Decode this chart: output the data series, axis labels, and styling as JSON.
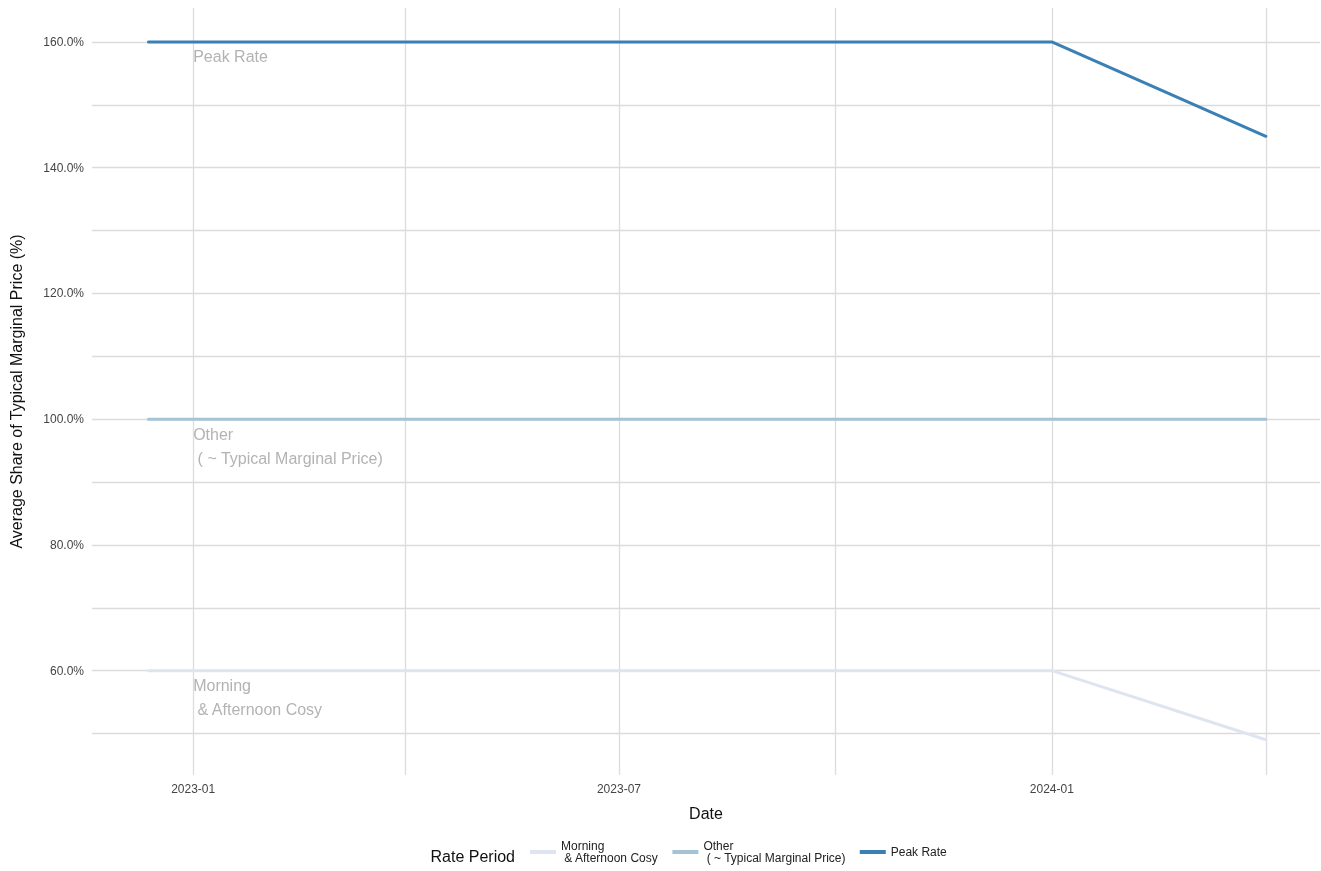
{
  "chart_data": {
    "type": "line",
    "xlabel": "Date",
    "ylabel": "Average Share of Typical Marginal Price (%)",
    "legend_title": "Rate Period",
    "x": [
      "2022-12-13",
      "2024-01-01",
      "2024-04-01"
    ],
    "series": [
      {
        "name": "Morning\n & Afternoon Cosy",
        "color": "#dde6f0",
        "values": [
          60,
          60,
          49
        ]
      },
      {
        "name": "Other\n ( ~ Typical Marginal Price)",
        "color": "#a6c3d6",
        "values": [
          100,
          100,
          100
        ]
      },
      {
        "name": "Peak Rate",
        "color": "#3a80b5",
        "values": [
          160,
          160,
          145
        ]
      }
    ],
    "xlim": [
      "2022-11-19",
      "2024-04-24"
    ],
    "xticks": [
      {
        "value": "2023-01",
        "label": "2023-01"
      },
      {
        "value": "2023-04",
        "label": null
      },
      {
        "value": "2023-07",
        "label": "2023-07"
      },
      {
        "value": "2023-10",
        "label": null
      },
      {
        "value": "2024-01",
        "label": "2024-01"
      },
      {
        "value": "2024-04",
        "label": null
      }
    ],
    "ylim": [
      43.4,
      165.4
    ],
    "yticks": [
      {
        "value": 50,
        "label": null
      },
      {
        "value": 60,
        "label": "60.0%"
      },
      {
        "value": 70,
        "label": null
      },
      {
        "value": 80,
        "label": "80.0%"
      },
      {
        "value": 90,
        "label": null
      },
      {
        "value": 100,
        "label": "100.0%"
      },
      {
        "value": 110,
        "label": null
      },
      {
        "value": 120,
        "label": "120.0%"
      },
      {
        "value": 130,
        "label": null
      },
      {
        "value": 140,
        "label": "140.0%"
      },
      {
        "value": 150,
        "label": null
      },
      {
        "value": 160,
        "label": "160.0%"
      }
    ],
    "annotations": [
      {
        "text": "Peak Rate",
        "x": "2023-01",
        "y": 160
      },
      {
        "text": "Other\n ( ~ Typical Marginal Price)",
        "x": "2023-01",
        "y": 100
      },
      {
        "text": "Morning\n & Afternoon Cosy",
        "x": "2023-01",
        "y": 60
      }
    ],
    "grid": true,
    "legend": "bottom",
    "marker": "none",
    "line_style": "solid"
  }
}
